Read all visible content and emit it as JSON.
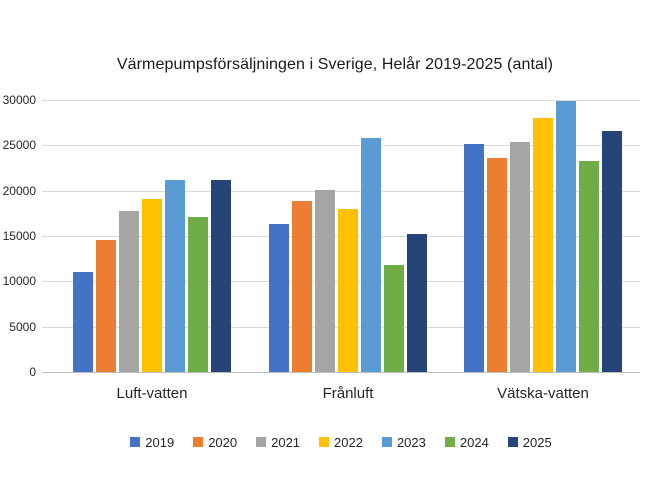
{
  "chart_data": {
    "type": "bar",
    "title": "Värmepumpsförsäljningen i Sverige, Helår 2019-2025 (antal)",
    "categories": [
      "Luft-vatten",
      "Frånluft",
      "Vätska-vatten"
    ],
    "series": [
      {
        "name": "2019",
        "color": "#4472C4",
        "values": [
          11000,
          16300,
          25200
        ]
      },
      {
        "name": "2020",
        "color": "#ED7D31",
        "values": [
          14600,
          18900,
          23600
        ]
      },
      {
        "name": "2021",
        "color": "#A5A5A5",
        "values": [
          17800,
          20100,
          25400
        ]
      },
      {
        "name": "2022",
        "color": "#FFC000",
        "values": [
          19100,
          18000,
          28000
        ]
      },
      {
        "name": "2023",
        "color": "#5B9BD5",
        "values": [
          21200,
          25800,
          29900
        ]
      },
      {
        "name": "2024",
        "color": "#70AD47",
        "values": [
          17100,
          11800,
          23300
        ]
      },
      {
        "name": "2025",
        "color": "#264478",
        "values": [
          21200,
          15200,
          26600
        ]
      }
    ],
    "xlabel": "",
    "ylabel": "",
    "ylim": [
      0,
      30000
    ],
    "yticks": [
      0,
      5000,
      10000,
      15000,
      20000,
      25000,
      30000
    ],
    "grid": true,
    "legend_position": "bottom",
    "gridline_color": "#D9D9D9",
    "axis_line_color": "#BFBFBF",
    "text_color": "#262626",
    "background_color": "#FFFFFF"
  }
}
